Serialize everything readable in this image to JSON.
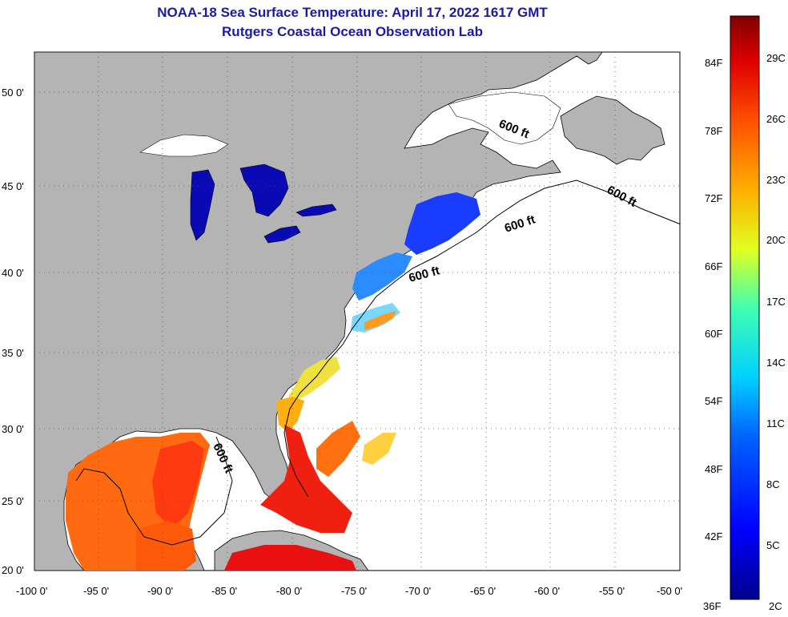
{
  "title_line1": "NOAA-18 Sea Surface Temperature:  April 17, 2022 1617 GMT",
  "title_line2": "Rutgers Coastal Ocean Observation Lab",
  "lat_labels": [
    "50 0'",
    "45 0'",
    "40 0'",
    "35 0'",
    "30 0'",
    "25 0'",
    "20 0'"
  ],
  "lon_labels": [
    "-100 0'",
    "-95 0'",
    "-90 0'",
    "-85 0'",
    "-80 0'",
    "-75 0'",
    "-70 0'",
    "-65 0'",
    "-60 0'",
    "-55 0'",
    "-50 0'"
  ],
  "contour_label": "600 ft",
  "colorbar": {
    "fahrenheit": [
      "84F",
      "78F",
      "72F",
      "66F",
      "60F",
      "54F",
      "48F",
      "42F",
      "36F"
    ],
    "celsius": [
      "29C",
      "26C",
      "23C",
      "20C",
      "17C",
      "14C",
      "11C",
      "8C",
      "5C",
      "2C"
    ]
  },
  "colors": {
    "land": "#b4b4b4",
    "ocean_nodata": "#ffffff",
    "title": "#1a1aa6"
  }
}
